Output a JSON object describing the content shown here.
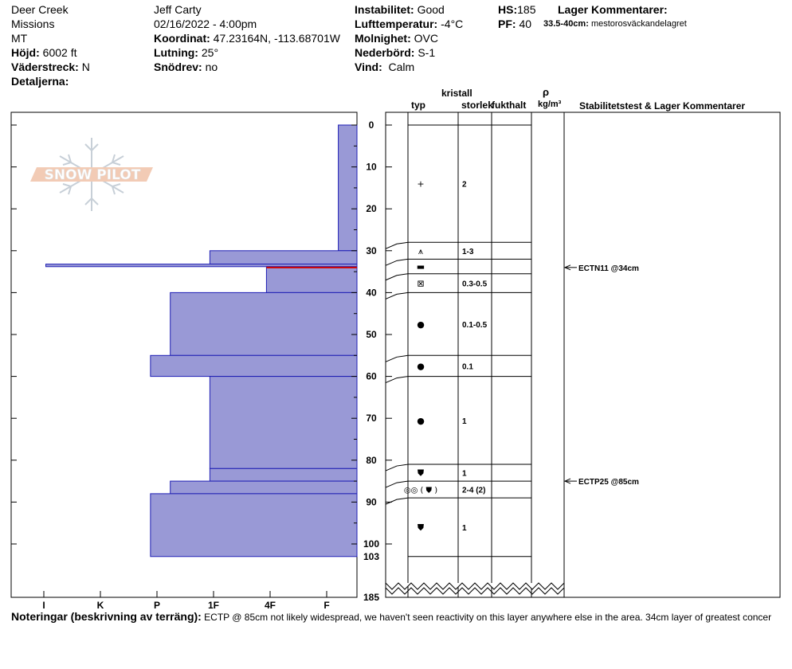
{
  "header": {
    "col1": [
      {
        "label": "",
        "value": "Deer Creek"
      },
      {
        "label": "",
        "value": "Missions"
      },
      {
        "label": "",
        "value": "MT"
      },
      {
        "label": "Höjd:",
        "value": "6002 ft"
      },
      {
        "label": "Väderstreck:",
        "value": "N"
      },
      {
        "label": "Detaljerna:",
        "value": ""
      }
    ],
    "col2": [
      {
        "label": "",
        "value": "Jeff Carty"
      },
      {
        "label": "",
        "value": "02/16/2022 - 4:00pm"
      },
      {
        "label": "Koordinat:",
        "value": "47.23164N, -113.68701W"
      },
      {
        "label": "Lutning:",
        "value": "25°"
      },
      {
        "label": "Snödrev:",
        "value": "no"
      }
    ],
    "col3": [
      {
        "label": "Instabilitet:",
        "value": "Good"
      },
      {
        "label": "Lufttemperatur:",
        "value": "-4°C"
      },
      {
        "label": "Molnighet:",
        "value": "OVC"
      },
      {
        "label": "Nederbörd:",
        "value": "S-1"
      },
      {
        "label": "Vind:",
        "value": "Calm"
      }
    ],
    "col4": [
      {
        "label": "HS:",
        "value": "185"
      },
      {
        "label": "PF:",
        "value": "40"
      }
    ],
    "layer_comments_title": "Lager Kommentarer:",
    "layer_comment_range": "33.5-40cm:",
    "layer_comment_text": "mestorosväckandelagret"
  },
  "watermark": "SNOW PILOT",
  "columns": {
    "kristall": "kristall",
    "typ": "typ",
    "storlek": "storlek",
    "fukthalt": "fukthalt",
    "rho": "ρ",
    "density_unit": "kg/m³",
    "stability": "Stabilitetstest & Lager Kommentarer"
  },
  "notes": {
    "label": "Noteringar (beskrivning av terräng):",
    "text": "ECTP @ 85cm not likely widespread, we haven't seen reactivity on this layer anywhere else in the area. 34cm layer of greatest concer"
  },
  "chart_data": {
    "type": "bar",
    "depth_axis": {
      "ticks": [
        0,
        10,
        20,
        30,
        40,
        50,
        60,
        70,
        80,
        90,
        100
      ],
      "extra_ticks": [
        103,
        185
      ],
      "total_depth": 185
    },
    "hardness_axis": {
      "labels": [
        "I",
        "K",
        "P",
        "1F",
        "4F",
        "F"
      ],
      "positions": [
        6,
        5,
        4,
        3,
        2,
        1
      ]
    },
    "layers": [
      {
        "top": 0,
        "bottom": 30,
        "hardness": 0.33
      },
      {
        "top": 30,
        "bottom": 33.2,
        "hardness": 2.6
      },
      {
        "top": 33.2,
        "bottom": 33.8,
        "hardness": 5.5
      },
      {
        "top": 33.8,
        "bottom": 40,
        "hardness": 1.6
      },
      {
        "top": 40,
        "bottom": 55,
        "hardness": 3.3
      },
      {
        "top": 55,
        "bottom": 60,
        "hardness": 3.65
      },
      {
        "top": 60,
        "bottom": 82,
        "hardness": 2.6
      },
      {
        "top": 82,
        "bottom": 85,
        "hardness": 2.6
      },
      {
        "top": 85,
        "bottom": 88,
        "hardness": 3.3
      },
      {
        "top": 88,
        "bottom": 103,
        "hardness": 3.65
      }
    ],
    "concern_line_depth": 34,
    "crystal_layers": [
      {
        "top": 0,
        "bottom": 28,
        "symbol": "+",
        "size": "2"
      },
      {
        "top": 28,
        "bottom": 32,
        "symbol": "⩚",
        "size": "1-3"
      },
      {
        "top": 32,
        "bottom": 35.5,
        "symbol": "▬",
        "size": ""
      },
      {
        "top": 35.5,
        "bottom": 40,
        "symbol": "⊠",
        "size": "0.3-0.5"
      },
      {
        "top": 40,
        "bottom": 55,
        "symbol": "●",
        "size": "0.1-0.5"
      },
      {
        "top": 55,
        "bottom": 60,
        "symbol": "●",
        "size": "0.1"
      },
      {
        "top": 60,
        "bottom": 81,
        "symbol": "●",
        "size": "1"
      },
      {
        "top": 81,
        "bottom": 85,
        "symbol": "⛊",
        "size": "1"
      },
      {
        "top": 85,
        "bottom": 89,
        "symbol": "◎◎ ( ⛊ )",
        "size": "2-4 (2)"
      },
      {
        "top": 89,
        "bottom": 103,
        "symbol": "⛊",
        "size": "1"
      }
    ],
    "stability_tests": [
      {
        "depth": 34,
        "label": "ECTN11 @34cm"
      },
      {
        "depth": 85,
        "label": "ECTP25 @85cm"
      }
    ]
  }
}
